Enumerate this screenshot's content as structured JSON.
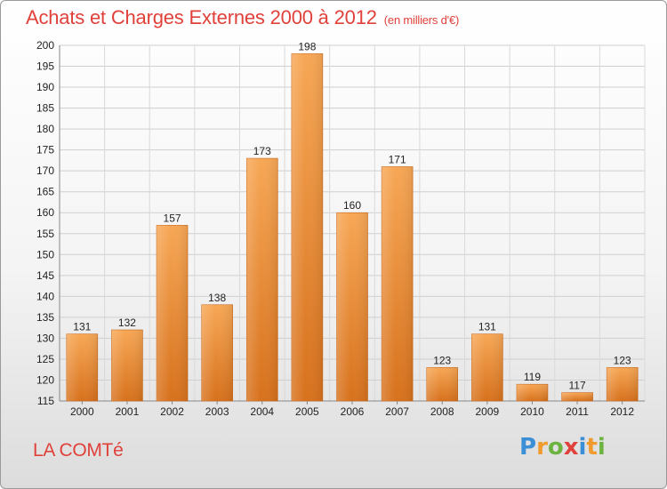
{
  "header": {
    "title": "Achats et Charges Externes 2000 à 2012",
    "unit": "(en milliers d'€)"
  },
  "footer": {
    "place": "LA COMTé",
    "logo": [
      "P",
      "r",
      "o",
      "x",
      "i",
      "t",
      "i"
    ],
    "logo_colors": [
      "#3a8fd6",
      "#f19a2d",
      "#6db33f",
      "#e0413a",
      "#3a8fd6",
      "#f19a2d",
      "#6db33f"
    ]
  },
  "chart_data": {
    "type": "bar",
    "title": "Achats et Charges Externes 2000 à 2012",
    "subtitle": "(en milliers d'€)",
    "categories": [
      "2000",
      "2001",
      "2002",
      "2003",
      "2004",
      "2005",
      "2006",
      "2007",
      "2008",
      "2009",
      "2010",
      "2011",
      "2012"
    ],
    "values": [
      131,
      132,
      157,
      138,
      173,
      198,
      160,
      171,
      123,
      131,
      119,
      117,
      123
    ],
    "ylim": [
      115,
      200
    ],
    "yticks": [
      115,
      120,
      125,
      130,
      135,
      140,
      145,
      150,
      155,
      160,
      165,
      170,
      175,
      180,
      185,
      190,
      195,
      200
    ],
    "grid": true,
    "bar_color_top": "#f7a755",
    "bar_color_bottom": "#d7711c"
  }
}
